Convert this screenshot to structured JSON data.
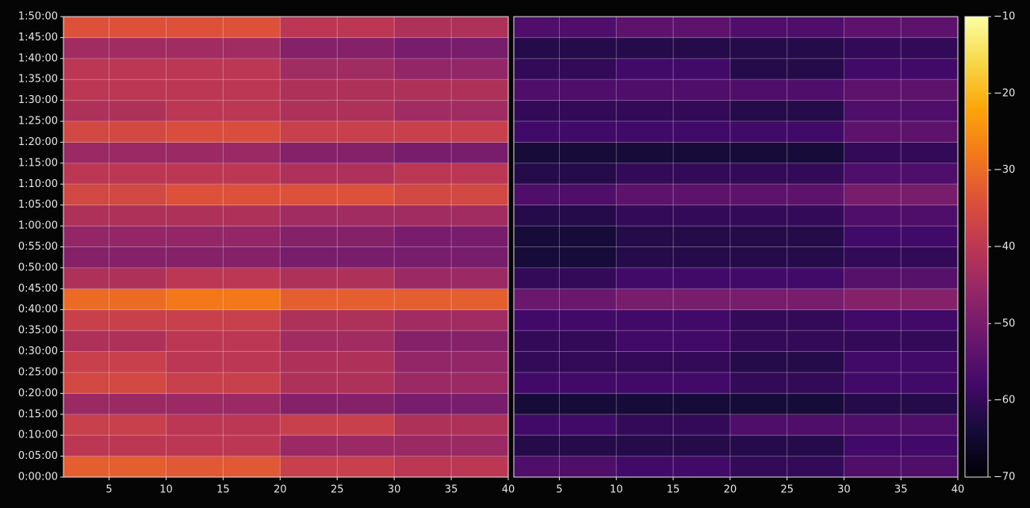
{
  "chart_data": [
    {
      "type": "heatmap",
      "colormap": "inferno",
      "grid": true,
      "xbins": [
        1,
        10,
        20,
        30,
        40
      ],
      "ybins": [
        0,
        5,
        10,
        15,
        20,
        25,
        30,
        35,
        40,
        45,
        50,
        55,
        60,
        65,
        70,
        75,
        80,
        85,
        90,
        95,
        100,
        105,
        110
      ],
      "values": [
        [
          -32,
          -33,
          -38,
          -40
        ],
        [
          -40,
          -40,
          -45,
          -45
        ],
        [
          -38,
          -40,
          -38,
          -42
        ],
        [
          -45,
          -45,
          -48,
          -50
        ],
        [
          -36,
          -38,
          -42,
          -45
        ],
        [
          -38,
          -40,
          -42,
          -46
        ],
        [
          -42,
          -40,
          -44,
          -48
        ],
        [
          -38,
          -38,
          -42,
          -44
        ],
        [
          -30,
          -28,
          -32,
          -32
        ],
        [
          -42,
          -40,
          -42,
          -45
        ],
        [
          -48,
          -48,
          -50,
          -50
        ],
        [
          -46,
          -46,
          -48,
          -50
        ],
        [
          -42,
          -42,
          -44,
          -44
        ],
        [
          -36,
          -34,
          -34,
          -36
        ],
        [
          -40,
          -40,
          -42,
          -40
        ],
        [
          -45,
          -45,
          -48,
          -50
        ],
        [
          -36,
          -35,
          -38,
          -38
        ],
        [
          -42,
          -40,
          -42,
          -44
        ],
        [
          -40,
          -40,
          -42,
          -42
        ],
        [
          -40,
          -40,
          -44,
          -46
        ],
        [
          -44,
          -44,
          -48,
          -50
        ],
        [
          -34,
          -34,
          -40,
          -42
        ]
      ],
      "xlim": [
        1,
        40
      ],
      "xticks": [
        5,
        10,
        15,
        20,
        25,
        30,
        35,
        40
      ],
      "ylim": [
        0,
        110
      ],
      "yticks": [
        {
          "value": 0,
          "label": "0:00:00"
        },
        {
          "value": 5,
          "label": "0:05:00"
        },
        {
          "value": 10,
          "label": "0:10:00"
        },
        {
          "value": 15,
          "label": "0:15:00"
        },
        {
          "value": 20,
          "label": "0:20:00"
        },
        {
          "value": 25,
          "label": "0:25:00"
        },
        {
          "value": 30,
          "label": "0:30:00"
        },
        {
          "value": 35,
          "label": "0:35:00"
        },
        {
          "value": 40,
          "label": "0:40:00"
        },
        {
          "value": 45,
          "label": "0:45:00"
        },
        {
          "value": 50,
          "label": "0:50:00"
        },
        {
          "value": 55,
          "label": "0:55:00"
        },
        {
          "value": 60,
          "label": "1:00:00"
        },
        {
          "value": 65,
          "label": "1:05:00"
        },
        {
          "value": 70,
          "label": "1:10:00"
        },
        {
          "value": 75,
          "label": "1:15:00"
        },
        {
          "value": 80,
          "label": "1:20:00"
        },
        {
          "value": 85,
          "label": "1:25:00"
        },
        {
          "value": 90,
          "label": "1:30:00"
        },
        {
          "value": 95,
          "label": "1:35:00"
        },
        {
          "value": 100,
          "label": "1:40:00"
        },
        {
          "value": 105,
          "label": "1:45:00"
        },
        {
          "value": 110,
          "label": "1:50:00"
        }
      ],
      "zlim": [
        -70,
        -10
      ]
    },
    {
      "type": "heatmap",
      "colormap": "inferno",
      "grid": true,
      "colorbar": true,
      "xbins": [
        1,
        10,
        20,
        30,
        40
      ],
      "ybins": [
        0,
        5,
        10,
        15,
        20,
        25,
        30,
        35,
        40,
        45,
        50,
        55,
        60,
        65,
        70,
        75,
        80,
        85,
        90,
        95,
        100,
        105,
        110
      ],
      "values": [
        [
          -56,
          -58,
          -60,
          -56
        ],
        [
          -62,
          -62,
          -62,
          -58
        ],
        [
          -58,
          -60,
          -56,
          -56
        ],
        [
          -64,
          -64,
          -64,
          -62
        ],
        [
          -58,
          -58,
          -60,
          -58
        ],
        [
          -60,
          -60,
          -62,
          -58
        ],
        [
          -60,
          -58,
          -60,
          -60
        ],
        [
          -58,
          -58,
          -60,
          -58
        ],
        [
          -52,
          -50,
          -50,
          -48
        ],
        [
          -60,
          -58,
          -58,
          -55
        ],
        [
          -64,
          -62,
          -62,
          -60
        ],
        [
          -64,
          -62,
          -62,
          -58
        ],
        [
          -62,
          -60,
          -60,
          -56
        ],
        [
          -56,
          -54,
          -54,
          -50
        ],
        [
          -62,
          -60,
          -60,
          -56
        ],
        [
          -64,
          -64,
          -64,
          -60
        ],
        [
          -58,
          -58,
          -58,
          -54
        ],
        [
          -60,
          -60,
          -62,
          -56
        ],
        [
          -56,
          -56,
          -56,
          -54
        ],
        [
          -60,
          -58,
          -62,
          -58
        ],
        [
          -62,
          -62,
          -62,
          -60
        ],
        [
          -56,
          -54,
          -56,
          -54
        ]
      ],
      "xlim": [
        1,
        40
      ],
      "xticks": [
        5,
        10,
        15,
        20,
        25,
        30,
        35,
        40
      ],
      "ylim": [
        0,
        110
      ],
      "zlim": [
        -70,
        -10
      ],
      "zticks": [
        {
          "value": -10,
          "label": "−10"
        },
        {
          "value": -20,
          "label": "−20"
        },
        {
          "value": -30,
          "label": "−30"
        },
        {
          "value": -40,
          "label": "−40"
        },
        {
          "value": -50,
          "label": "−50"
        },
        {
          "value": -60,
          "label": "−60"
        },
        {
          "value": -70,
          "label": "−70"
        }
      ]
    }
  ]
}
